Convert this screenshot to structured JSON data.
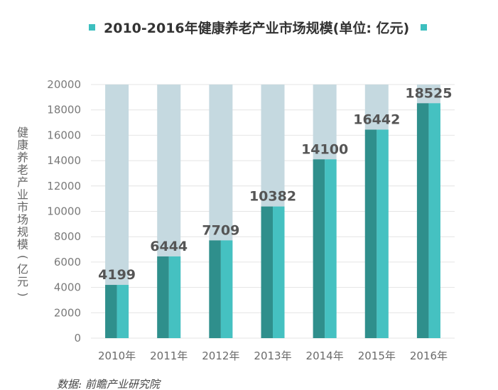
{
  "chart_data": {
    "type": "bar",
    "title": "2010-2016年健康养老产业市场规模(单位: 亿元)",
    "ylabel": "健康养老产业市场规模 (亿元)",
    "xlabel": "",
    "categories": [
      "2010年",
      "2011年",
      "2012年",
      "2013年",
      "2014年",
      "2015年",
      "2016年"
    ],
    "values": [
      4199,
      6444,
      7709,
      10382,
      14100,
      16442,
      18525
    ],
    "value_labels": [
      "4199",
      "6444",
      "7709",
      "10382",
      "14100",
      "16442",
      "18525"
    ],
    "ylim": [
      0,
      20000
    ],
    "yticks": [
      0,
      2000,
      4000,
      6000,
      8000,
      10000,
      12000,
      14000,
      16000,
      18000,
      20000
    ],
    "ytick_labels": [
      "0",
      "2000",
      "4000",
      "6000",
      "8000",
      "10000",
      "12000",
      "14000",
      "16000",
      "18000",
      "20000"
    ],
    "grid": true,
    "background_bar_value": 20000,
    "legend_position": "top"
  },
  "source_text": "数据: 前瞻产业研究院",
  "colors": {
    "bar_dark": "#2f8f8c",
    "bar_light": "#45c1c1",
    "background_bar": "#c5d9e0",
    "legend_marker": "#3dbfbf",
    "grid": "#e4e4e4"
  }
}
